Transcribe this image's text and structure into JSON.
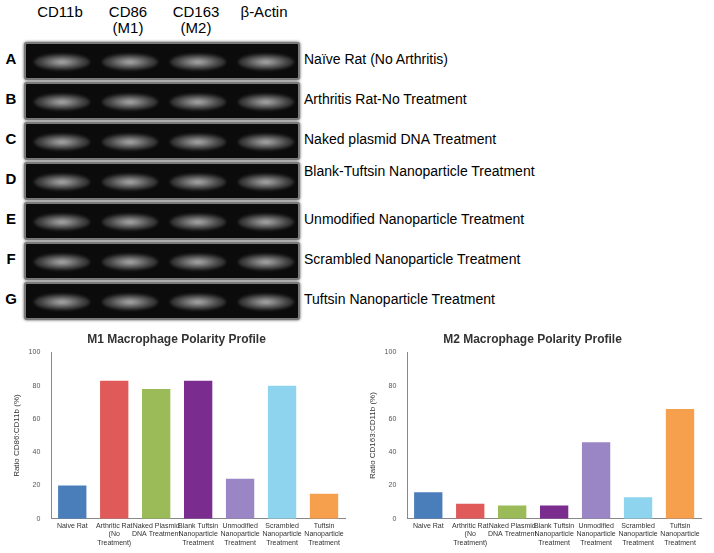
{
  "blot": {
    "columns": [
      "CD11b",
      "CD86 (M1)",
      "CD163 (M2)",
      "β-Actin"
    ],
    "rows": [
      {
        "letter": "A",
        "label": "Naïve Rat (No Arthritis)"
      },
      {
        "letter": "B",
        "label": "Arthritis Rat-No Treatment"
      },
      {
        "letter": "C",
        "label": "Naked plasmid DNA Treatment"
      },
      {
        "letter": "D",
        "label": "Blank-Tuftsin Nanoparticle Treatment"
      },
      {
        "letter": "E",
        "label": "Unmodified Nanoparticle Treatment"
      },
      {
        "letter": "F",
        "label": "Scrambled Nanoparticle Treatment"
      },
      {
        "letter": "G",
        "label": "Tuftsin Nanoparticle Treatment"
      }
    ]
  },
  "chart_data": [
    {
      "type": "bar",
      "title": "M1 Macrophage Polarity Profile",
      "y_label": "Ratio CD86:CD11b (%)",
      "categories": [
        "Naive Rat",
        "Arthritic Rat (No Treatment)",
        "Naked Plasmid DNA Treatment",
        "Blank Tuftsin Nanoparticle Treatment",
        "Unmodified Nanoparticle Treatment",
        "Scrambled Nanoparticle Treatment",
        "Tuftsin Nanoparticle Treatment"
      ],
      "values": [
        20,
        83,
        78,
        83,
        24,
        80,
        15
      ],
      "colors": [
        "#4a7ebb",
        "#e05a5a",
        "#9bbb59",
        "#7b2c8f",
        "#9a86c4",
        "#8ed4ee",
        "#f6a04d"
      ],
      "ylim": [
        0,
        100
      ],
      "yticks": [
        0,
        20,
        40,
        60,
        80,
        100
      ],
      "grid": false
    },
    {
      "type": "bar",
      "title": "M2 Macrophage Polarity Profile",
      "y_label": "Ratio CD163:CD11b (%)",
      "categories": [
        "Naive Rat",
        "Arthritic Rat (No Treatment)",
        "Naked Plasmid DNA Treatment",
        "Blank Tuftsin Nanoparticle Treatment",
        "Unmodified Nanoparticle Treatment",
        "Scrambled Nanoparticle Treatment",
        "Tuftsin Nanoparticle Treatment"
      ],
      "values": [
        16,
        9,
        8,
        8,
        46,
        13,
        66
      ],
      "colors": [
        "#4a7ebb",
        "#e05a5a",
        "#9bbb59",
        "#7b2c8f",
        "#9a86c4",
        "#8ed4ee",
        "#f6a04d"
      ],
      "ylim": [
        0,
        100
      ],
      "yticks": [
        0,
        20,
        40,
        60,
        80,
        100
      ],
      "grid": false
    }
  ]
}
